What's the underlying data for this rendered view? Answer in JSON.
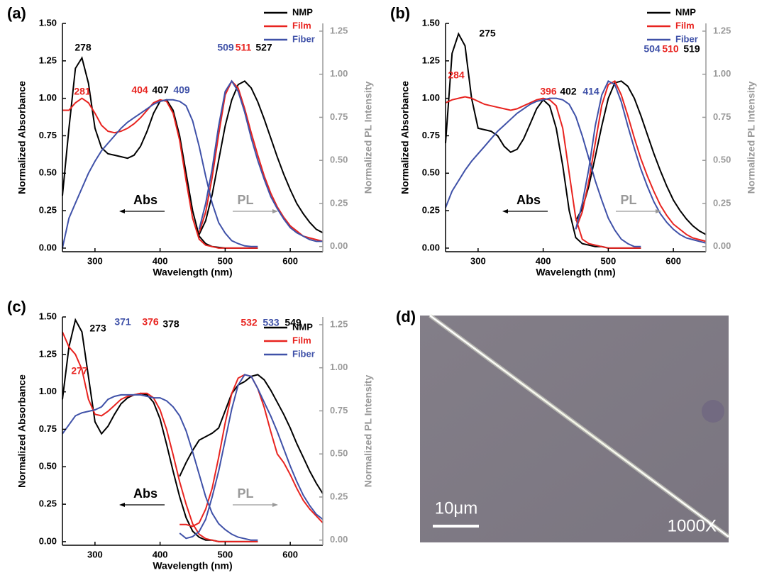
{
  "chart_data": [
    {
      "type": "line",
      "panel": "(a)",
      "xlabel": "Wavelength (nm)",
      "ylabel": "Normalized Absorbance",
      "y2label": "Normalized PL  Intensity",
      "abs_label": "Abs",
      "pl_label": "PL",
      "xlim": [
        250,
        650
      ],
      "xticks": [
        300,
        400,
        500,
        600
      ],
      "ylim": [
        -0.024,
        1.5
      ],
      "yticks": [
        {
          "value": 0,
          "label": "0.00"
        },
        {
          "value": 0.25,
          "label": "0.25"
        },
        {
          "value": 0.5,
          "label": "0.50"
        },
        {
          "value": 0.75,
          "label": "0.75"
        },
        {
          "value": 1,
          "label": "1.00"
        },
        {
          "value": 1.25,
          "label": "1.25"
        },
        {
          "value": 1.5,
          "label": "1.50"
        }
      ],
      "y2lim": [
        -0.03,
        1.295
      ],
      "y2ticks": [
        {
          "value": 0,
          "label": "0.00"
        },
        {
          "value": 0.25,
          "label": "0.25"
        },
        {
          "value": 0.5,
          "label": "0.50"
        },
        {
          "value": 0.75,
          "label": "0.75"
        },
        {
          "value": 1,
          "label": "1.00"
        },
        {
          "value": 1.25,
          "label": "1.25"
        }
      ],
      "x": [
        250,
        260,
        270,
        280,
        290,
        300,
        310,
        320,
        330,
        340,
        350,
        360,
        370,
        380,
        390,
        400,
        410,
        420,
        430,
        440,
        450,
        460,
        470,
        480,
        490,
        500,
        510,
        520,
        530,
        540,
        550
      ],
      "pl_x": [
        460,
        470,
        480,
        490,
        500,
        510,
        520,
        530,
        540,
        550,
        560,
        570,
        580,
        590,
        600,
        610,
        620,
        630,
        640,
        650
      ],
      "series": [
        {
          "name": "NMP",
          "color": "#000000",
          "values": [
            0.35,
            0.8,
            1.2,
            1.27,
            1.1,
            0.8,
            0.67,
            0.63,
            0.62,
            0.61,
            0.6,
            0.62,
            0.68,
            0.78,
            0.9,
            0.98,
            0.99,
            0.92,
            0.75,
            0.5,
            0.25,
            0.08,
            0.03,
            0.01,
            0.005,
            0,
            0,
            0,
            0,
            0,
            0
          ],
          "pl_values": [
            0.07,
            0.15,
            0.3,
            0.5,
            0.7,
            0.85,
            0.94,
            0.96,
            0.92,
            0.84,
            0.74,
            0.63,
            0.52,
            0.42,
            0.33,
            0.25,
            0.19,
            0.14,
            0.1,
            0.08
          ]
        },
        {
          "name": "Film",
          "color": "#e8231f",
          "values": [
            0.92,
            0.92,
            0.97,
            1.0,
            0.97,
            0.9,
            0.82,
            0.78,
            0.77,
            0.78,
            0.8,
            0.83,
            0.87,
            0.92,
            0.97,
            0.99,
            0.98,
            0.9,
            0.72,
            0.45,
            0.2,
            0.06,
            0.02,
            0.01,
            0,
            0,
            0,
            0,
            0,
            0,
            0
          ],
          "pl_values": [
            0.08,
            0.2,
            0.4,
            0.65,
            0.88,
            0.96,
            0.92,
            0.8,
            0.66,
            0.53,
            0.41,
            0.31,
            0.23,
            0.17,
            0.12,
            0.09,
            0.06,
            0.05,
            0.04,
            0.03
          ]
        },
        {
          "name": "Fiber",
          "color": "#3f51a8",
          "values": [
            0,
            0.2,
            0.3,
            0.4,
            0.5,
            0.58,
            0.65,
            0.7,
            0.75,
            0.8,
            0.84,
            0.87,
            0.9,
            0.93,
            0.96,
            0.98,
            0.99,
            0.99,
            0.98,
            0.95,
            0.85,
            0.68,
            0.48,
            0.3,
            0.17,
            0.1,
            0.05,
            0.03,
            0.015,
            0.01,
            0.01
          ],
          "pl_values": [
            0.1,
            0.25,
            0.45,
            0.7,
            0.9,
            0.96,
            0.9,
            0.78,
            0.63,
            0.5,
            0.39,
            0.29,
            0.22,
            0.16,
            0.11,
            0.08,
            0.06,
            0.04,
            0.03,
            0.03
          ]
        }
      ],
      "annotations": [
        {
          "text": "278",
          "series": 0
        },
        {
          "text": "281",
          "series": 1
        },
        {
          "text": "404",
          "series": 1
        },
        {
          "text": "407",
          "series": 0
        },
        {
          "text": "409",
          "series": 2
        },
        {
          "text": "509",
          "series": 2
        },
        {
          "text": "511",
          "series": 1
        },
        {
          "text": "527",
          "series": 0
        }
      ]
    },
    {
      "type": "line",
      "panel": "(b)",
      "xlabel": "Wavelength (nm)",
      "ylabel": "Normalized Absorbance",
      "y2label": "Normalized PL  Intensity",
      "abs_label": "Abs",
      "pl_label": "PL",
      "xlim": [
        250,
        650
      ],
      "xticks": [
        300,
        400,
        500,
        600
      ],
      "ylim": [
        -0.024,
        1.5
      ],
      "yticks": [
        {
          "value": 0,
          "label": "0.00"
        },
        {
          "value": 0.25,
          "label": "0.25"
        },
        {
          "value": 0.5,
          "label": "0.50"
        },
        {
          "value": 0.75,
          "label": "0.75"
        },
        {
          "value": 1,
          "label": "1.00"
        },
        {
          "value": 1.25,
          "label": "1.25"
        },
        {
          "value": 1.5,
          "label": "1.50"
        }
      ],
      "y2lim": [
        -0.03,
        1.295
      ],
      "y2ticks": [
        {
          "value": 0,
          "label": "0.00"
        },
        {
          "value": 0.25,
          "label": "0.25"
        },
        {
          "value": 0.5,
          "label": "0.50"
        },
        {
          "value": 0.75,
          "label": "0.75"
        },
        {
          "value": 1,
          "label": "1.00"
        },
        {
          "value": 1.25,
          "label": "1.25"
        }
      ],
      "x": [
        250,
        260,
        270,
        280,
        290,
        300,
        310,
        320,
        330,
        340,
        350,
        360,
        370,
        380,
        390,
        400,
        410,
        420,
        430,
        440,
        450,
        460,
        470,
        480,
        490,
        500,
        510,
        520,
        530,
        540,
        550
      ],
      "pl_x": [
        450,
        460,
        470,
        480,
        490,
        500,
        510,
        520,
        530,
        540,
        550,
        560,
        570,
        580,
        590,
        600,
        610,
        620,
        630,
        640,
        650
      ],
      "series": [
        {
          "name": "NMP",
          "color": "#000000",
          "values": [
            0.7,
            1.3,
            1.43,
            1.35,
            1.0,
            0.8,
            0.79,
            0.78,
            0.75,
            0.68,
            0.64,
            0.66,
            0.73,
            0.83,
            0.93,
            0.99,
            0.95,
            0.8,
            0.55,
            0.25,
            0.07,
            0.03,
            0.02,
            0.01,
            0.01,
            0,
            0,
            0,
            0,
            0,
            0
          ],
          "pl_values": [
            0.15,
            0.22,
            0.35,
            0.52,
            0.7,
            0.86,
            0.95,
            0.96,
            0.93,
            0.86,
            0.76,
            0.65,
            0.54,
            0.44,
            0.35,
            0.27,
            0.21,
            0.16,
            0.12,
            0.09,
            0.07
          ]
        },
        {
          "name": "Film",
          "color": "#e8231f",
          "values": [
            0.97,
            0.99,
            1.0,
            1.01,
            1.0,
            0.98,
            0.96,
            0.95,
            0.94,
            0.93,
            0.92,
            0.93,
            0.95,
            0.97,
            0.99,
            1.0,
            0.99,
            0.95,
            0.8,
            0.5,
            0.2,
            0.06,
            0.03,
            0.02,
            0.01,
            0,
            0,
            0,
            0,
            0,
            0
          ],
          "pl_values": [
            0.1,
            0.2,
            0.38,
            0.6,
            0.82,
            0.94,
            0.96,
            0.88,
            0.76,
            0.63,
            0.51,
            0.41,
            0.32,
            0.24,
            0.18,
            0.13,
            0.1,
            0.07,
            0.05,
            0.04,
            0.03
          ]
        },
        {
          "name": "Fiber",
          "color": "#3f51a8",
          "values": [
            0.27,
            0.38,
            0.45,
            0.52,
            0.58,
            0.63,
            0.68,
            0.73,
            0.78,
            0.82,
            0.86,
            0.9,
            0.93,
            0.96,
            0.98,
            0.99,
            1.0,
            1.0,
            0.99,
            0.96,
            0.88,
            0.75,
            0.6,
            0.45,
            0.32,
            0.2,
            0.12,
            0.06,
            0.03,
            0.01,
            0.01
          ],
          "pl_values": [
            0.1,
            0.25,
            0.45,
            0.7,
            0.88,
            0.96,
            0.94,
            0.84,
            0.7,
            0.57,
            0.45,
            0.35,
            0.26,
            0.19,
            0.14,
            0.1,
            0.07,
            0.05,
            0.04,
            0.03,
            0.02
          ]
        }
      ],
      "annotations": [
        {
          "text": "275",
          "series": 0
        },
        {
          "text": "284",
          "series": 1
        },
        {
          "text": "396",
          "series": 1
        },
        {
          "text": "402",
          "series": 0
        },
        {
          "text": "414",
          "series": 2
        },
        {
          "text": "504",
          "series": 2
        },
        {
          "text": "510",
          "series": 1
        },
        {
          "text": "519",
          "series": 0
        }
      ]
    },
    {
      "type": "line",
      "panel": "(c)",
      "xlabel": "Wavelength (nm)",
      "ylabel": "Normalized Absorbance",
      "y2label": "Normalized PL  Intensity",
      "abs_label": "Abs",
      "pl_label": "PL",
      "xlim": [
        250,
        650
      ],
      "xticks": [
        300,
        400,
        500,
        600
      ],
      "ylim": [
        -0.024,
        1.5
      ],
      "yticks": [
        {
          "value": 0,
          "label": "0.00"
        },
        {
          "value": 0.25,
          "label": "0.25"
        },
        {
          "value": 0.5,
          "label": "0.50"
        },
        {
          "value": 0.75,
          "label": "0.75"
        },
        {
          "value": 1,
          "label": "1.00"
        },
        {
          "value": 1.25,
          "label": "1.25"
        },
        {
          "value": 1.5,
          "label": "1.50"
        }
      ],
      "y2lim": [
        -0.03,
        1.295
      ],
      "y2ticks": [
        {
          "value": 0,
          "label": "0.00"
        },
        {
          "value": 0.25,
          "label": "0.25"
        },
        {
          "value": 0.5,
          "label": "0.50"
        },
        {
          "value": 0.75,
          "label": "0.75"
        },
        {
          "value": 1,
          "label": "1.00"
        },
        {
          "value": 1.25,
          "label": "1.25"
        }
      ],
      "x": [
        250,
        260,
        270,
        280,
        290,
        300,
        310,
        320,
        330,
        340,
        350,
        360,
        370,
        380,
        390,
        400,
        410,
        420,
        430,
        440,
        450,
        460,
        470,
        480,
        490,
        500,
        510,
        520,
        530,
        540,
        550
      ],
      "pl_x": [
        430,
        440,
        450,
        460,
        470,
        480,
        490,
        500,
        510,
        520,
        530,
        540,
        550,
        560,
        570,
        580,
        590,
        600,
        610,
        620,
        630,
        640,
        650
      ],
      "series": [
        {
          "name": "NMP",
          "color": "#000000",
          "values": [
            0.95,
            1.3,
            1.48,
            1.4,
            1.1,
            0.8,
            0.72,
            0.77,
            0.85,
            0.92,
            0.96,
            0.98,
            0.99,
            0.98,
            0.93,
            0.82,
            0.65,
            0.47,
            0.3,
            0.16,
            0.07,
            0.03,
            0.01,
            0.01,
            0,
            0,
            0,
            0,
            0,
            0,
            0
          ],
          "pl_values": [
            0.37,
            0.45,
            0.52,
            0.58,
            0.6,
            0.62,
            0.65,
            0.75,
            0.85,
            0.9,
            0.92,
            0.95,
            0.96,
            0.93,
            0.87,
            0.8,
            0.73,
            0.65,
            0.56,
            0.48,
            0.4,
            0.33,
            0.27
          ]
        },
        {
          "name": "Film",
          "color": "#e8231f",
          "values": [
            1.4,
            1.3,
            1.25,
            1.15,
            0.95,
            0.85,
            0.84,
            0.87,
            0.91,
            0.95,
            0.97,
            0.98,
            0.99,
            0.99,
            0.96,
            0.88,
            0.75,
            0.58,
            0.4,
            0.25,
            0.12,
            0.05,
            0.02,
            0.01,
            0,
            0,
            0,
            0,
            0,
            0,
            0
          ],
          "pl_values": [
            0.09,
            0.09,
            0.08,
            0.1,
            0.18,
            0.3,
            0.48,
            0.68,
            0.85,
            0.94,
            0.96,
            0.95,
            0.88,
            0.77,
            0.63,
            0.5,
            0.45,
            0.38,
            0.3,
            0.23,
            0.18,
            0.14,
            0.1
          ]
        },
        {
          "name": "Fiber",
          "color": "#3f51a8",
          "values": [
            0.72,
            0.78,
            0.84,
            0.86,
            0.87,
            0.88,
            0.9,
            0.95,
            0.97,
            0.98,
            0.98,
            0.98,
            0.98,
            0.97,
            0.96,
            0.96,
            0.94,
            0.9,
            0.84,
            0.74,
            0.6,
            0.45,
            0.3,
            0.19,
            0.12,
            0.08,
            0.05,
            0.03,
            0.02,
            0.01,
            0.01
          ],
          "pl_values": [
            0.04,
            0.01,
            0.02,
            0.05,
            0.12,
            0.25,
            0.4,
            0.58,
            0.76,
            0.9,
            0.96,
            0.95,
            0.88,
            0.8,
            0.72,
            0.63,
            0.53,
            0.43,
            0.34,
            0.26,
            0.2,
            0.15,
            0.12
          ]
        }
      ],
      "annotations": [
        {
          "text": "273",
          "series": 0
        },
        {
          "text": "277",
          "series": 1
        },
        {
          "text": "371",
          "series": 2
        },
        {
          "text": "376",
          "series": 1
        },
        {
          "text": "378",
          "series": 0
        },
        {
          "text": "532",
          "series": 1
        },
        {
          "text": "533",
          "series": 2
        },
        {
          "text": "549",
          "series": 0
        }
      ]
    }
  ],
  "image": {
    "panel": "(d)",
    "scale_bar": "10μm",
    "magnification": "1000X"
  }
}
